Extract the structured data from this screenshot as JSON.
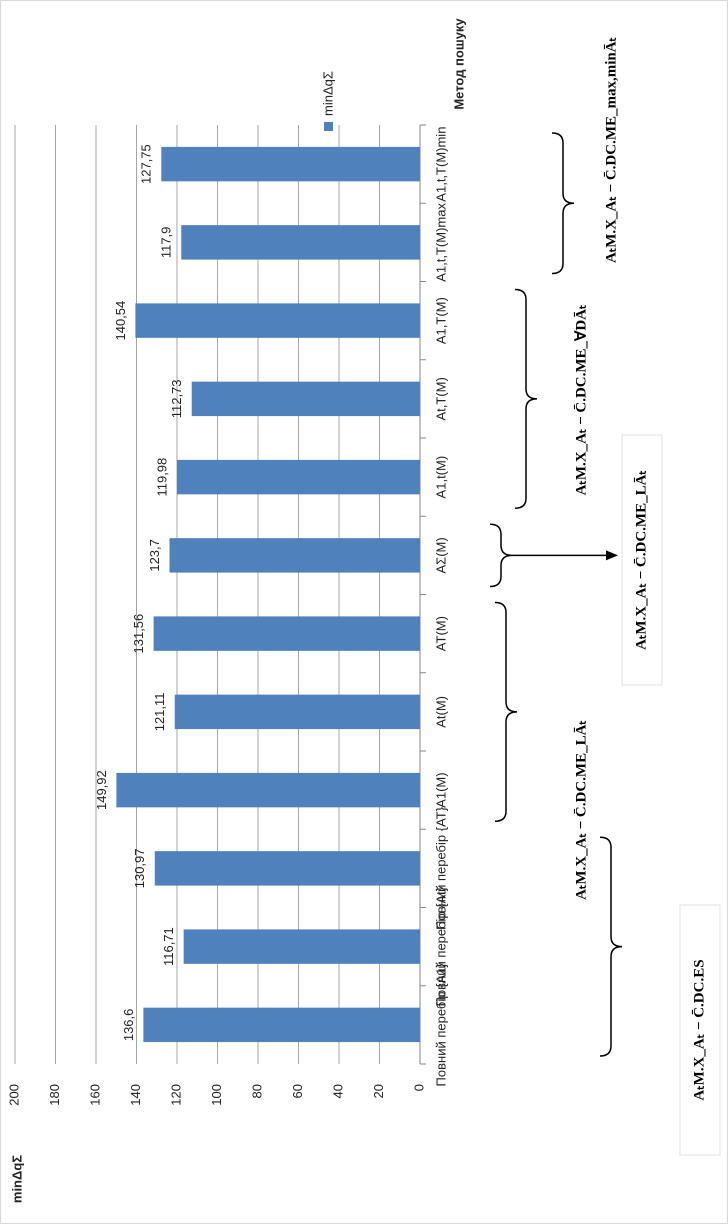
{
  "chart_data": {
    "type": "bar",
    "y_label": "minΔqΣ",
    "x_label": "Метод пошуку",
    "categories": [
      "Повний перебір {A1}",
      "Повний перебір {At}",
      "Повний перебір {AT}",
      "A1(M)",
      "At(M)",
      "AT(M)",
      "AΣ(M)",
      "A1,t(M)",
      "At,T(M)",
      "A1,T(M)",
      "A1,t,T(M)max",
      "A1,t,T(M)min"
    ],
    "series": [
      {
        "name": "minΔqΣ",
        "color": "#4f81bd",
        "values": [
          136.6,
          116.71,
          130.97,
          149.92,
          121.11,
          131.56,
          123.7,
          119.98,
          112.73,
          140.54,
          117.9,
          127.75
        ],
        "value_labels": [
          "136,6",
          "116,71",
          "130,97",
          "149,92",
          "121,11",
          "131,56",
          "123,7",
          "119,98",
          "112,73",
          "140,54",
          "117,9",
          "127,75"
        ]
      }
    ],
    "ylim": [
      0,
      200
    ],
    "yticks": [
      0,
      20,
      40,
      60,
      80,
      100,
      120,
      140,
      160,
      180,
      200
    ],
    "grid": true,
    "annotations": [
      "AₜM.X_Aₜ − C̄.DC.ES",
      "AₜM.X_Aₜ − C̄.DC.ME_LĀₜ",
      "AₜM.X_Aₜ − C̄.DC.ME_LĀₜ",
      "AₜM.X_Aₜ − C̄.DC.ME_∀DĀₜ",
      "AₜM.X_Aₜ − C̄.DC.ME_max,minĀₜ"
    ]
  }
}
